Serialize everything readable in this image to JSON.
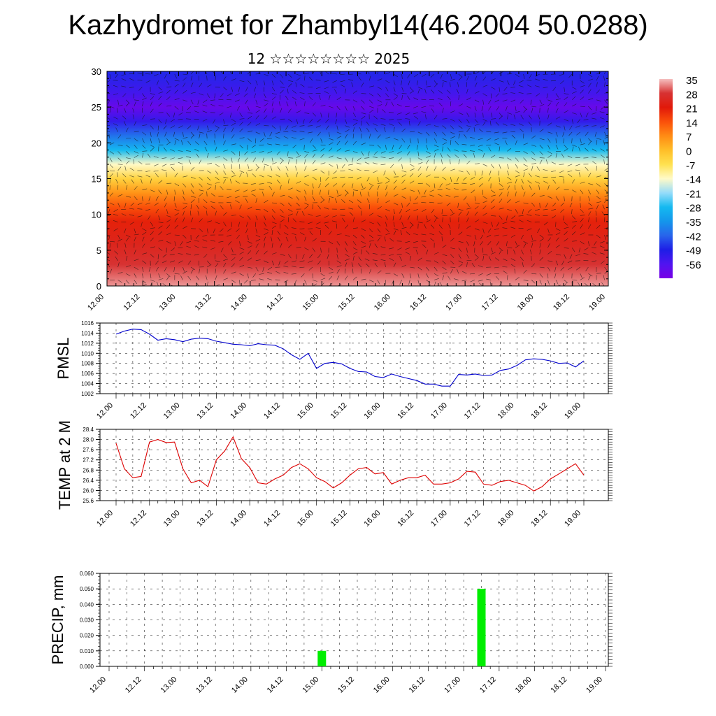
{
  "title": "Kazhydromet for Zhambyl14(46.2004 50.0288)",
  "subtitle": "12 ☆☆☆☆☆☆☆☆ 2025",
  "chart_data": [
    {
      "type": "heatmap",
      "ylim": [
        0,
        30
      ],
      "y_ticks": [
        "0",
        "5",
        "10",
        "15",
        "20",
        "25",
        "30"
      ],
      "x_ticks": [
        "12.00",
        "12.12",
        "13.00",
        "13.12",
        "14.00",
        "14.12",
        "15.00",
        "15.12",
        "16.00",
        "16.12",
        "17.00",
        "17.12",
        "18.00",
        "18.12",
        "19.00"
      ],
      "colorbar_labels": [
        "35",
        "28",
        "21",
        "14",
        "7",
        "0",
        "-7",
        "-14",
        "-21",
        "-28",
        "-35",
        "-42",
        "-49",
        "-56"
      ],
      "colorbar_range": [
        -63,
        35
      ],
      "bands": [
        {
          "level": 0,
          "value": 33
        },
        {
          "level": 3,
          "value": 28
        },
        {
          "level": 6,
          "value": 24
        },
        {
          "level": 9,
          "value": 20
        },
        {
          "level": 11,
          "value": 14
        },
        {
          "level": 13,
          "value": 6
        },
        {
          "level": 15,
          "value": -4
        },
        {
          "level": 17,
          "value": -14
        },
        {
          "level": 19,
          "value": -28
        },
        {
          "level": 21,
          "value": -40
        },
        {
          "level": 23,
          "value": -52
        },
        {
          "level": 25,
          "value": -60
        },
        {
          "level": 27,
          "value": -54
        },
        {
          "level": 30,
          "value": -48
        }
      ],
      "overlay": "wind vectors"
    },
    {
      "type": "line",
      "ylabel": "PMSL",
      "ylim": [
        1002,
        1016
      ],
      "y_ticks": [
        "1002",
        "1004",
        "1006",
        "1008",
        "1010",
        "1012",
        "1014",
        "1016"
      ],
      "x_ticks": [
        "12.00",
        "12.12",
        "13.00",
        "13.12",
        "14.00",
        "14.12",
        "15.00",
        "15.12",
        "16.00",
        "16.12",
        "17.00",
        "17.12",
        "18.00",
        "18.12",
        "19.00"
      ],
      "color": "#0000cc",
      "x": [
        0,
        3,
        6,
        9,
        12,
        15,
        18,
        21,
        24,
        27,
        30,
        33,
        36,
        39,
        42,
        45,
        48,
        51,
        54,
        57,
        60,
        63,
        66,
        69,
        72,
        75,
        78,
        81,
        84,
        87,
        90,
        93,
        96,
        99,
        102,
        105,
        108,
        111,
        114,
        117,
        120,
        123,
        126,
        129,
        132,
        135,
        138,
        141,
        144,
        147,
        150,
        153,
        156,
        159,
        162,
        165,
        168
      ],
      "values": [
        1013.8,
        1014.4,
        1014.8,
        1014.7,
        1013.8,
        1012.6,
        1012.9,
        1012.7,
        1012.3,
        1012.8,
        1013.0,
        1012.9,
        1012.4,
        1012.1,
        1011.8,
        1011.7,
        1011.5,
        1011.9,
        1011.7,
        1011.6,
        1010.9,
        1009.7,
        1008.8,
        1010.0,
        1007.0,
        1008.0,
        1008.2,
        1007.9,
        1007.0,
        1006.4,
        1006.3,
        1005.4,
        1005.2,
        1005.9,
        1005.4,
        1005.0,
        1004.6,
        1003.9,
        1003.9,
        1003.5,
        1003.5,
        1005.8,
        1005.7,
        1005.9,
        1005.6,
        1005.7,
        1006.6,
        1006.9,
        1007.6,
        1008.7,
        1008.9,
        1008.8,
        1008.5,
        1008.0,
        1008.1,
        1007.3,
        1008.5
      ]
    },
    {
      "type": "line",
      "ylabel": "TEMP at 2 M",
      "ylim": [
        25.6,
        28.4
      ],
      "y_ticks": [
        "25.6",
        "26.0",
        "26.4",
        "26.8",
        "27.2",
        "27.6",
        "28.0",
        "28.4"
      ],
      "x_ticks": [
        "12.00",
        "12.12",
        "13.00",
        "13.12",
        "14.00",
        "14.12",
        "15.00",
        "15.12",
        "16.00",
        "16.12",
        "17.00",
        "17.12",
        "18.00",
        "18.12",
        "19.00"
      ],
      "color": "#dd0000",
      "x": [
        0,
        3,
        6,
        9,
        12,
        15,
        18,
        21,
        24,
        27,
        30,
        33,
        36,
        39,
        42,
        45,
        48,
        51,
        54,
        57,
        60,
        63,
        66,
        69,
        72,
        75,
        78,
        81,
        84,
        87,
        90,
        93,
        96,
        99,
        102,
        105,
        108,
        111,
        114,
        117,
        120,
        123,
        126,
        129,
        132,
        135,
        138,
        141,
        144,
        147,
        150,
        153,
        156,
        159,
        162,
        165,
        168
      ],
      "values": [
        27.85,
        26.85,
        26.5,
        26.55,
        27.9,
        28.0,
        27.88,
        27.9,
        26.85,
        26.3,
        26.4,
        26.15,
        27.2,
        27.55,
        28.1,
        27.25,
        26.9,
        26.3,
        26.25,
        26.45,
        26.6,
        26.9,
        27.05,
        26.85,
        26.5,
        26.35,
        26.1,
        26.3,
        26.6,
        26.85,
        26.9,
        26.65,
        26.7,
        26.25,
        26.4,
        26.5,
        26.5,
        26.6,
        26.25,
        26.25,
        26.3,
        26.45,
        26.75,
        26.72,
        26.25,
        26.2,
        26.35,
        26.4,
        26.3,
        26.2,
        25.98,
        26.15,
        26.45,
        26.65,
        26.85,
        27.05,
        26.6
      ]
    },
    {
      "type": "bar",
      "ylabel": "PRECIP, mm",
      "ylim": [
        0,
        0.06
      ],
      "y_ticks": [
        "0.000",
        "0.010",
        "0.020",
        "0.030",
        "0.040",
        "0.050",
        "0.060"
      ],
      "x_ticks": [
        "12.00",
        "12.12",
        "13.00",
        "13.12",
        "14.00",
        "14.12",
        "15.00",
        "15.12",
        "16.00",
        "16.12",
        "17.00",
        "17.12",
        "18.00",
        "18.12",
        "19.00"
      ],
      "color": "#00ee00",
      "bars": [
        {
          "x": 72,
          "value": 0.01
        },
        {
          "x": 126,
          "value": 0.05
        }
      ]
    }
  ]
}
